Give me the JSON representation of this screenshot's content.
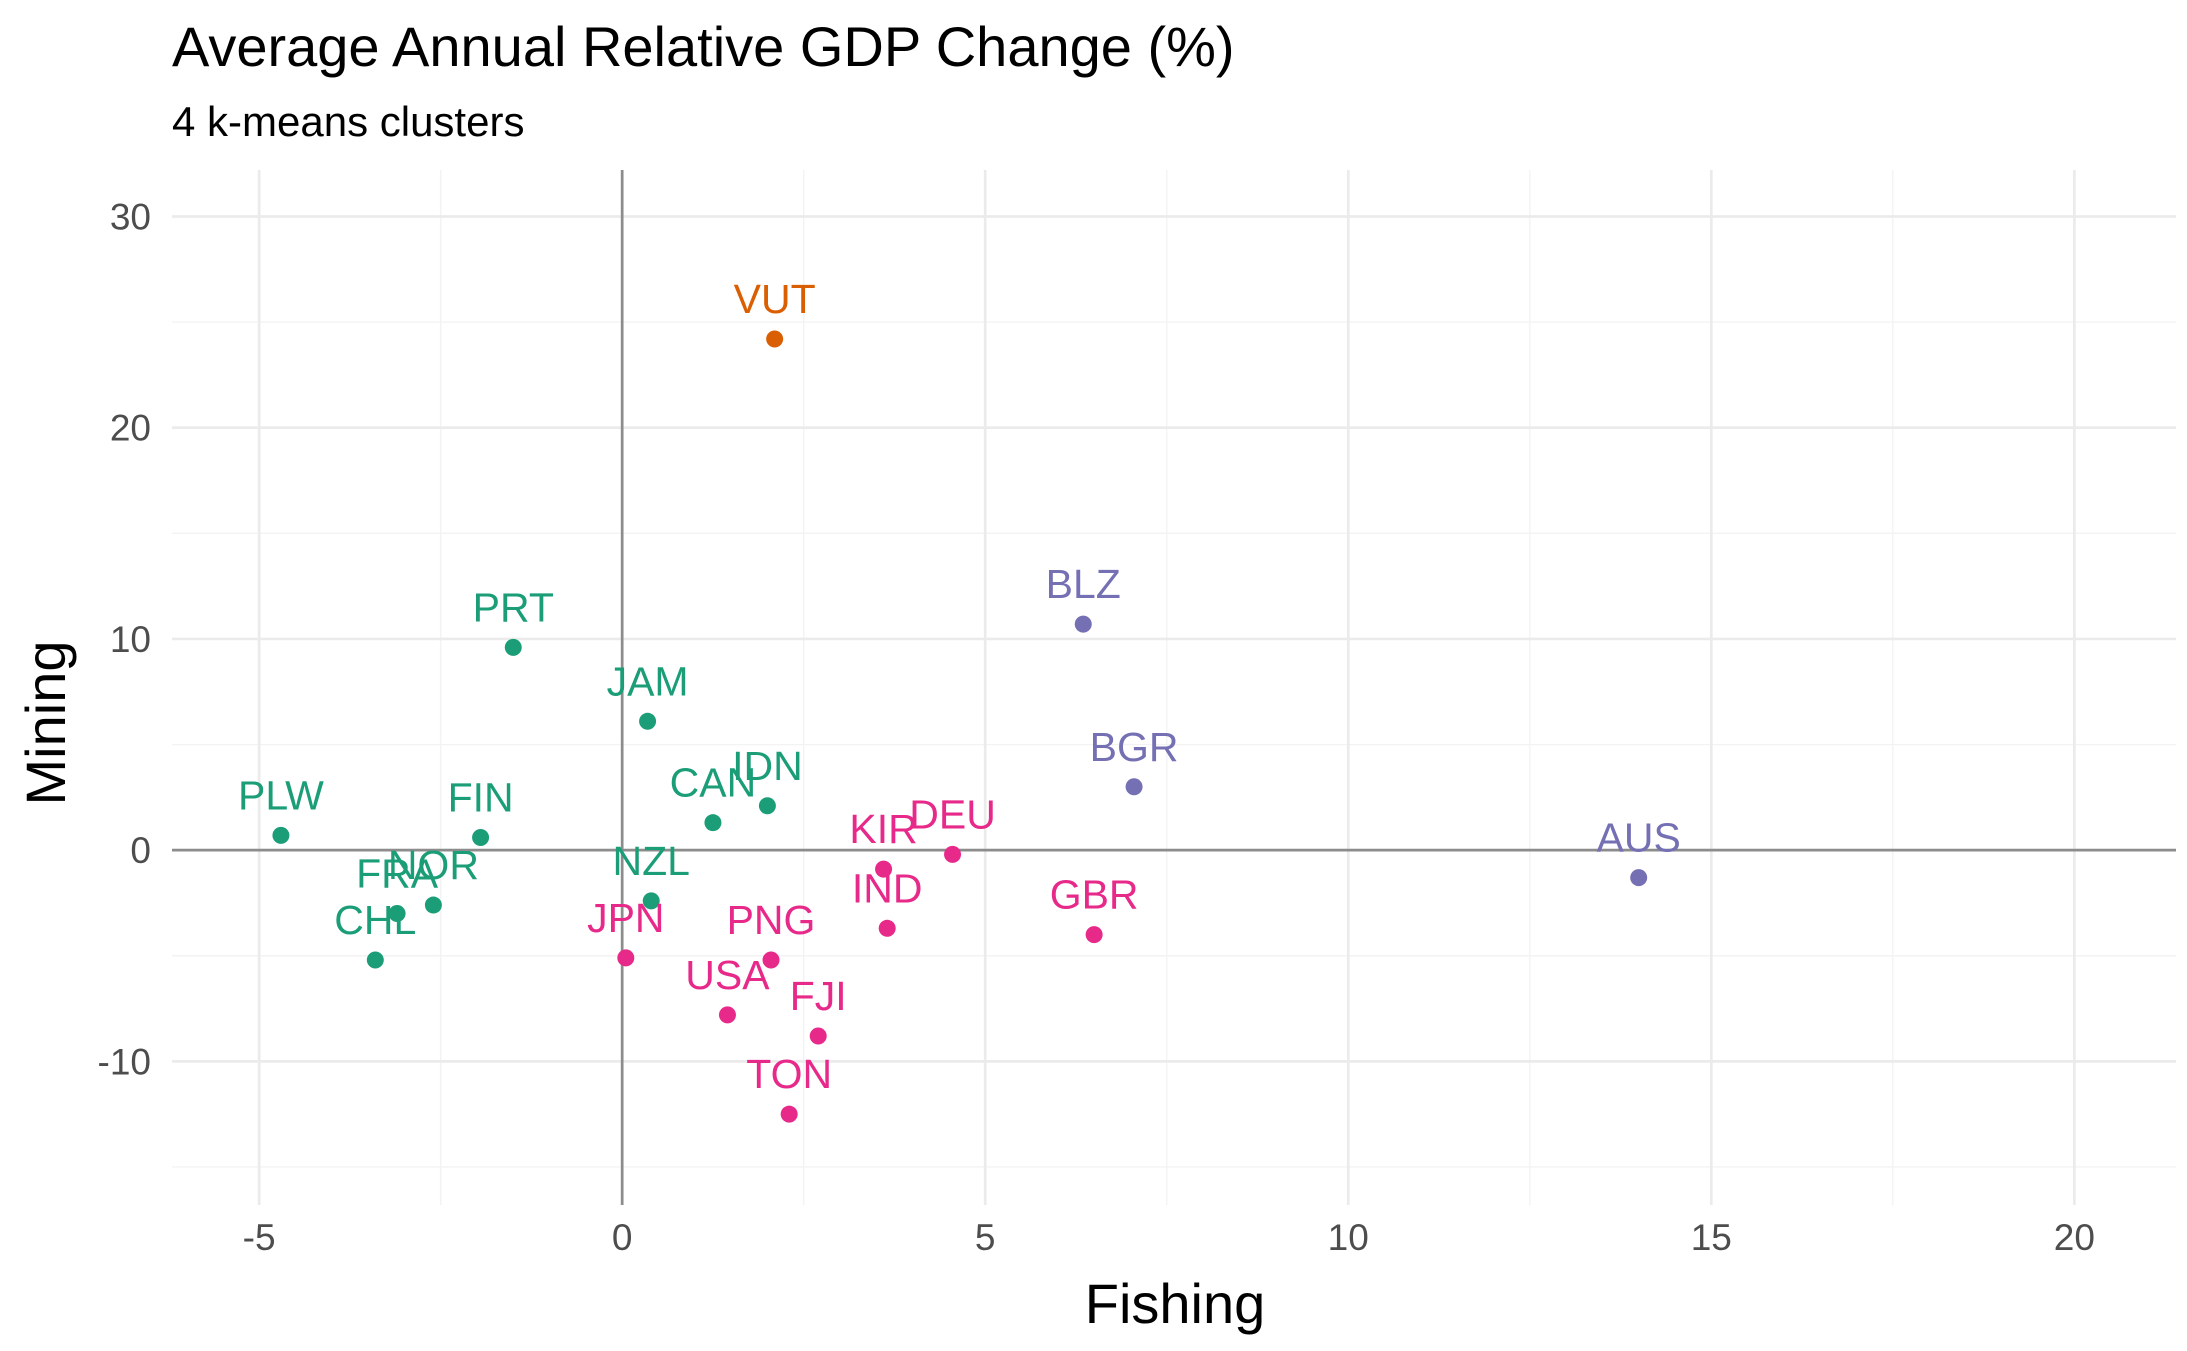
{
  "chart_data": {
    "type": "scatter",
    "title": "Average Annual Relative GDP Change (%)",
    "subtitle": "4 k-means clusters",
    "xlabel": "Fishing",
    "ylabel": "Mining",
    "xlim": [
      -6.2,
      21.4
    ],
    "ylim": [
      -16.8,
      32.2
    ],
    "x_ticks": [
      -5,
      0,
      5,
      10,
      15,
      20
    ],
    "x_tick_labels": [
      "-5",
      "0",
      "5",
      "10",
      "15",
      "20"
    ],
    "y_ticks": [
      -10,
      0,
      10,
      20,
      30
    ],
    "y_tick_labels": [
      "-10",
      "0",
      "10",
      "20",
      "30"
    ],
    "grid": true,
    "legend": "none",
    "cluster_colors": {
      "green": "#1b9e77",
      "orange": "#d95f02",
      "purple": "#7570b3",
      "pink": "#e7298a"
    },
    "points": [
      {
        "label": "VUT",
        "x": 2.1,
        "y": 24.2,
        "cluster": "orange"
      },
      {
        "label": "PRT",
        "x": -1.5,
        "y": 9.6,
        "cluster": "green"
      },
      {
        "label": "JAM",
        "x": 0.35,
        "y": 6.1,
        "cluster": "green"
      },
      {
        "label": "PLW",
        "x": -4.7,
        "y": 0.7,
        "cluster": "green"
      },
      {
        "label": "FIN",
        "x": -1.95,
        "y": 0.6,
        "cluster": "green"
      },
      {
        "label": "CAN",
        "x": 1.25,
        "y": 1.3,
        "cluster": "green"
      },
      {
        "label": "IDN",
        "x": 2.0,
        "y": 2.1,
        "cluster": "green"
      },
      {
        "label": "NZL",
        "x": 0.4,
        "y": -2.4,
        "cluster": "green"
      },
      {
        "label": "NOR",
        "x": -2.6,
        "y": -2.6,
        "cluster": "green"
      },
      {
        "label": "FRA",
        "x": -3.1,
        "y": -3.0,
        "cluster": "green"
      },
      {
        "label": "CHL",
        "x": -3.4,
        "y": -5.2,
        "cluster": "green"
      },
      {
        "label": "BLZ",
        "x": 6.35,
        "y": 10.7,
        "cluster": "purple"
      },
      {
        "label": "BGR",
        "x": 7.05,
        "y": 3.0,
        "cluster": "purple"
      },
      {
        "label": "AUS",
        "x": 14.0,
        "y": -1.3,
        "cluster": "purple"
      },
      {
        "label": "DEU",
        "x": 4.55,
        "y": -0.2,
        "cluster": "pink"
      },
      {
        "label": "KIR",
        "x": 3.6,
        "y": -0.9,
        "cluster": "pink"
      },
      {
        "label": "IND",
        "x": 3.65,
        "y": -3.7,
        "cluster": "pink"
      },
      {
        "label": "GBR",
        "x": 6.5,
        "y": -4.0,
        "cluster": "pink"
      },
      {
        "label": "JPN",
        "x": 0.05,
        "y": -5.1,
        "cluster": "pink"
      },
      {
        "label": "PNG",
        "x": 2.05,
        "y": -5.2,
        "cluster": "pink"
      },
      {
        "label": "USA",
        "x": 1.45,
        "y": -7.8,
        "cluster": "pink"
      },
      {
        "label": "FJI",
        "x": 2.7,
        "y": -8.8,
        "cluster": "pink"
      },
      {
        "label": "TON",
        "x": 2.3,
        "y": -12.5,
        "cluster": "pink"
      }
    ]
  }
}
